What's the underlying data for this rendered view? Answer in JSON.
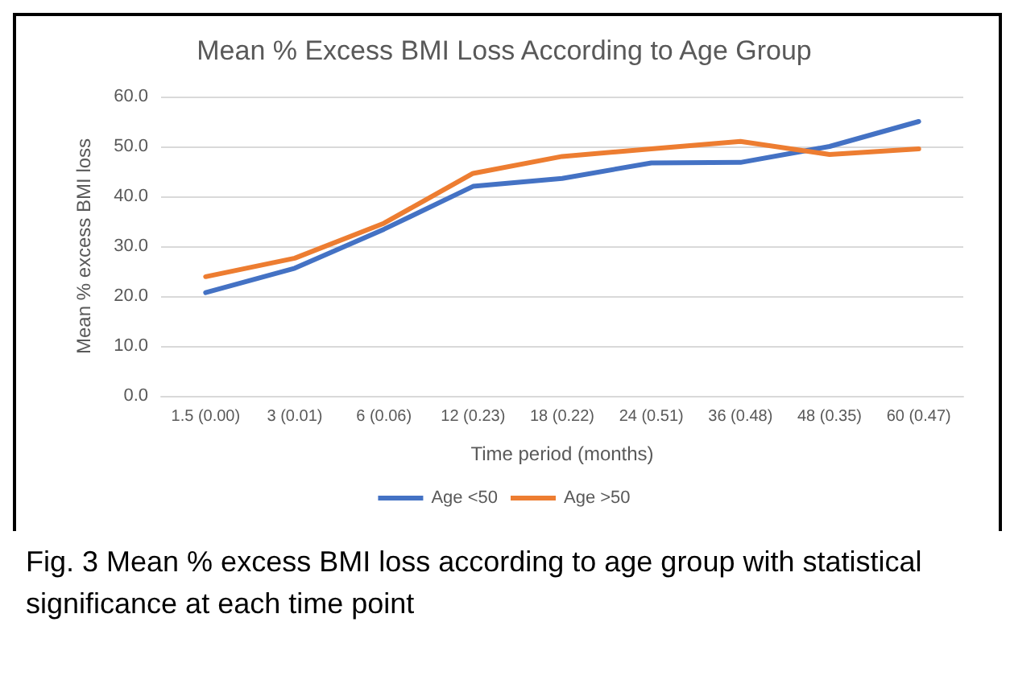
{
  "chart_data": {
    "type": "line",
    "title": "Mean % Excess BMI Loss According to Age Group",
    "xlabel": "Time period (months)",
    "ylabel": "Mean % excess BMI loss",
    "categories": [
      "1.5 (0.00)",
      "3 (0.01)",
      "6 (0.06)",
      "12 (0.23)",
      "18 (0.22)",
      "24 (0.51)",
      "36 (0.48)",
      "48 (0.35)",
      "60 (0.47)"
    ],
    "series": [
      {
        "name": "Age <50",
        "color": "#4472c4",
        "values": [
          20.7,
          25.6,
          33.4,
          42.0,
          43.6,
          46.7,
          46.8,
          50.0,
          55.0
        ]
      },
      {
        "name": "Age >50",
        "color": "#ed7d31",
        "values": [
          23.9,
          27.6,
          34.6,
          44.6,
          48.0,
          49.5,
          51.0,
          48.4,
          49.5
        ]
      }
    ],
    "ylim": [
      0,
      60
    ],
    "yticks": [
      {
        "value": 0,
        "label": "0.0"
      },
      {
        "value": 10,
        "label": "10.0"
      },
      {
        "value": 20,
        "label": "20.0"
      },
      {
        "value": 30,
        "label": "30.0"
      },
      {
        "value": 40,
        "label": "40.0"
      },
      {
        "value": 50,
        "label": "50.0"
      },
      {
        "value": 60,
        "label": "60.0"
      }
    ],
    "grid": "y",
    "legend": "bottom",
    "marker": "none",
    "line_style": "solid",
    "annotations": [
      "Fig. 3 Mean % excess BMI loss according to age group with statistical significance at each time point"
    ]
  }
}
